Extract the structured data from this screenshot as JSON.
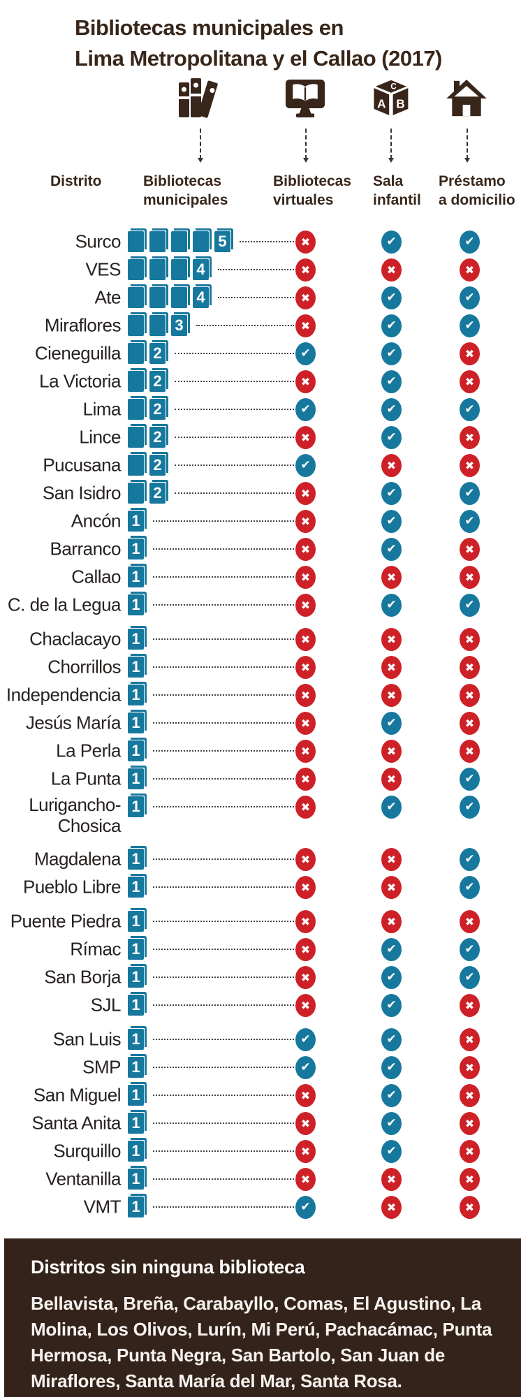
{
  "title": {
    "line1": "Bibliotecas municipales en",
    "line2": "Lima Metropolitana y el Callao (2017)"
  },
  "header": {
    "distrito": "Distrito",
    "municipales": "Bibliotecas municipales",
    "virtuales": "Bibliotecas virtuales",
    "infantil": "Sala infantil",
    "domicilio": "Préstamo a domicilio"
  },
  "icons": {
    "municipales": "books-icon",
    "virtuales": "monitor-book-icon",
    "infantil": "abc-block-icon",
    "domicilio": "house-icon"
  },
  "colors": {
    "teal": "#17789E",
    "red": "#CE2127",
    "brown": "#38261A",
    "footer_bg": "#33231B"
  },
  "chart_data": {
    "type": "table",
    "title": "Bibliotecas municipales en Lima Metropolitana y el Callao (2017)",
    "columns": [
      "Distrito",
      "Bibliotecas municipales",
      "Bibliotecas virtuales",
      "Sala infantil",
      "Préstamo a domicilio"
    ],
    "rows": [
      {
        "district": "Surco",
        "municipal": 5,
        "virtual": false,
        "infantil": true,
        "prestamo": true
      },
      {
        "district": "VES",
        "municipal": 4,
        "virtual": false,
        "infantil": false,
        "prestamo": false
      },
      {
        "district": "Ate",
        "municipal": 4,
        "virtual": false,
        "infantil": true,
        "prestamo": true
      },
      {
        "district": "Miraflores",
        "municipal": 3,
        "virtual": false,
        "infantil": true,
        "prestamo": true
      },
      {
        "district": "Cieneguilla",
        "municipal": 2,
        "virtual": true,
        "infantil": true,
        "prestamo": false
      },
      {
        "district": "La Victoria",
        "municipal": 2,
        "virtual": false,
        "infantil": true,
        "prestamo": false
      },
      {
        "district": "Lima",
        "municipal": 2,
        "virtual": true,
        "infantil": true,
        "prestamo": true
      },
      {
        "district": "Lince",
        "municipal": 2,
        "virtual": false,
        "infantil": true,
        "prestamo": false
      },
      {
        "district": "Pucusana",
        "municipal": 2,
        "virtual": true,
        "infantil": false,
        "prestamo": false
      },
      {
        "district": "San Isidro",
        "municipal": 2,
        "virtual": false,
        "infantil": true,
        "prestamo": true
      },
      {
        "district": "Ancón",
        "municipal": 1,
        "virtual": false,
        "infantil": true,
        "prestamo": true
      },
      {
        "district": "Barranco",
        "municipal": 1,
        "virtual": false,
        "infantil": true,
        "prestamo": false
      },
      {
        "district": "Callao",
        "municipal": 1,
        "virtual": false,
        "infantil": false,
        "prestamo": false
      },
      {
        "district": "C. de la Legua",
        "municipal": 1,
        "virtual": false,
        "infantil": true,
        "prestamo": true
      },
      {
        "district": "Chaclacayo",
        "municipal": 1,
        "virtual": false,
        "infantil": false,
        "prestamo": false,
        "gap_before": true
      },
      {
        "district": "Chorrillos",
        "municipal": 1,
        "virtual": false,
        "infantil": false,
        "prestamo": false
      },
      {
        "district": "Independencia",
        "municipal": 1,
        "virtual": false,
        "infantil": false,
        "prestamo": false
      },
      {
        "district": "Jesús María",
        "municipal": 1,
        "virtual": false,
        "infantil": true,
        "prestamo": false
      },
      {
        "district": "La Perla",
        "municipal": 1,
        "virtual": false,
        "infantil": false,
        "prestamo": false
      },
      {
        "district": "La Punta",
        "municipal": 1,
        "virtual": false,
        "infantil": false,
        "prestamo": true
      },
      {
        "district": "Lurigancho-Chosica",
        "district_lines": [
          "Lurigancho-",
          "Chosica"
        ],
        "municipal": 1,
        "virtual": false,
        "infantil": true,
        "prestamo": true
      },
      {
        "district": "Magdalena",
        "municipal": 1,
        "virtual": false,
        "infantil": false,
        "prestamo": true,
        "gap_before": true
      },
      {
        "district": "Pueblo Libre",
        "municipal": 1,
        "virtual": false,
        "infantil": false,
        "prestamo": true
      },
      {
        "district": "Puente Piedra",
        "municipal": 1,
        "virtual": false,
        "infantil": false,
        "prestamo": false,
        "gap_before": true
      },
      {
        "district": "Rímac",
        "municipal": 1,
        "virtual": false,
        "infantil": true,
        "prestamo": true
      },
      {
        "district": "San Borja",
        "municipal": 1,
        "virtual": false,
        "infantil": true,
        "prestamo": true
      },
      {
        "district": "SJL",
        "municipal": 1,
        "virtual": false,
        "infantil": true,
        "prestamo": false
      },
      {
        "district": "San Luis",
        "municipal": 1,
        "virtual": true,
        "infantil": true,
        "prestamo": false,
        "gap_before": true
      },
      {
        "district": "SMP",
        "municipal": 1,
        "virtual": true,
        "infantil": true,
        "prestamo": false
      },
      {
        "district": "San Miguel",
        "municipal": 1,
        "virtual": false,
        "infantil": true,
        "prestamo": false
      },
      {
        "district": "Santa Anita",
        "municipal": 1,
        "virtual": false,
        "infantil": true,
        "prestamo": false
      },
      {
        "district": "Surquillo",
        "municipal": 1,
        "virtual": false,
        "infantil": true,
        "prestamo": false
      },
      {
        "district": "Ventanilla",
        "municipal": 1,
        "virtual": false,
        "infantil": false,
        "prestamo": false
      },
      {
        "district": "VMT",
        "municipal": 1,
        "virtual": true,
        "infantil": false,
        "prestamo": false
      }
    ],
    "no_library_districts": [
      "Bellavista",
      "Breña",
      "Carabayllo",
      "Comas",
      "El Agustino",
      "La Molina",
      "Los Olivos",
      "Lurín",
      "Mi Perú",
      "Pachacámac",
      "Punta Hermosa",
      "Punta Negra",
      "San Bartolo",
      "San Juan de Miraflores",
      "Santa María del Mar",
      "Santa Rosa"
    ]
  },
  "footer": {
    "heading": "Distritos sin ninguna biblioteca",
    "text": "Bellavista, Breña, Carabayllo, Comas, El Agustino, La Molina, Los Olivos, Lurín, Mi Perú, Pachacámac, Punta Hermosa, Punta Negra, San Bartolo, San Juan de Miraflores, Santa María del Mar, Santa Rosa."
  }
}
